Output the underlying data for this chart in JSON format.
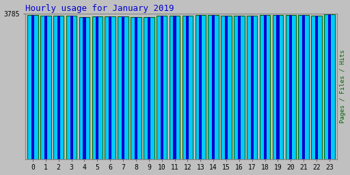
{
  "title": "Hourly usage for January 2019",
  "title_color": "#0000cc",
  "title_fontsize": 9,
  "title_font": "monospace",
  "hours": [
    0,
    1,
    2,
    3,
    4,
    5,
    6,
    7,
    8,
    9,
    10,
    11,
    12,
    13,
    14,
    15,
    16,
    17,
    18,
    19,
    20,
    21,
    22,
    23
  ],
  "values": [
    3748,
    3743,
    3741,
    3738,
    3698,
    3722,
    3718,
    3715,
    3706,
    3704,
    3730,
    3730,
    3728,
    3748,
    3755,
    3738,
    3730,
    3730,
    3758,
    3760,
    3750,
    3748,
    3740,
    3768
  ],
  "bar_color": "#00ccff",
  "bar_edge_color": "#006600",
  "bar_edge_width": 0.8,
  "stripe_color": "#0000cc",
  "background_color": "#c0c0c0",
  "plot_bg_color": "#c0c0c0",
  "ylabel": "Pages / Files / Hits",
  "ylabel_color": "#006600",
  "ytick_label": "3785",
  "ytick_value": 3785,
  "ymin": 0,
  "ymax": 3785,
  "xtick_fontsize": 7,
  "ytick_fontsize": 7
}
